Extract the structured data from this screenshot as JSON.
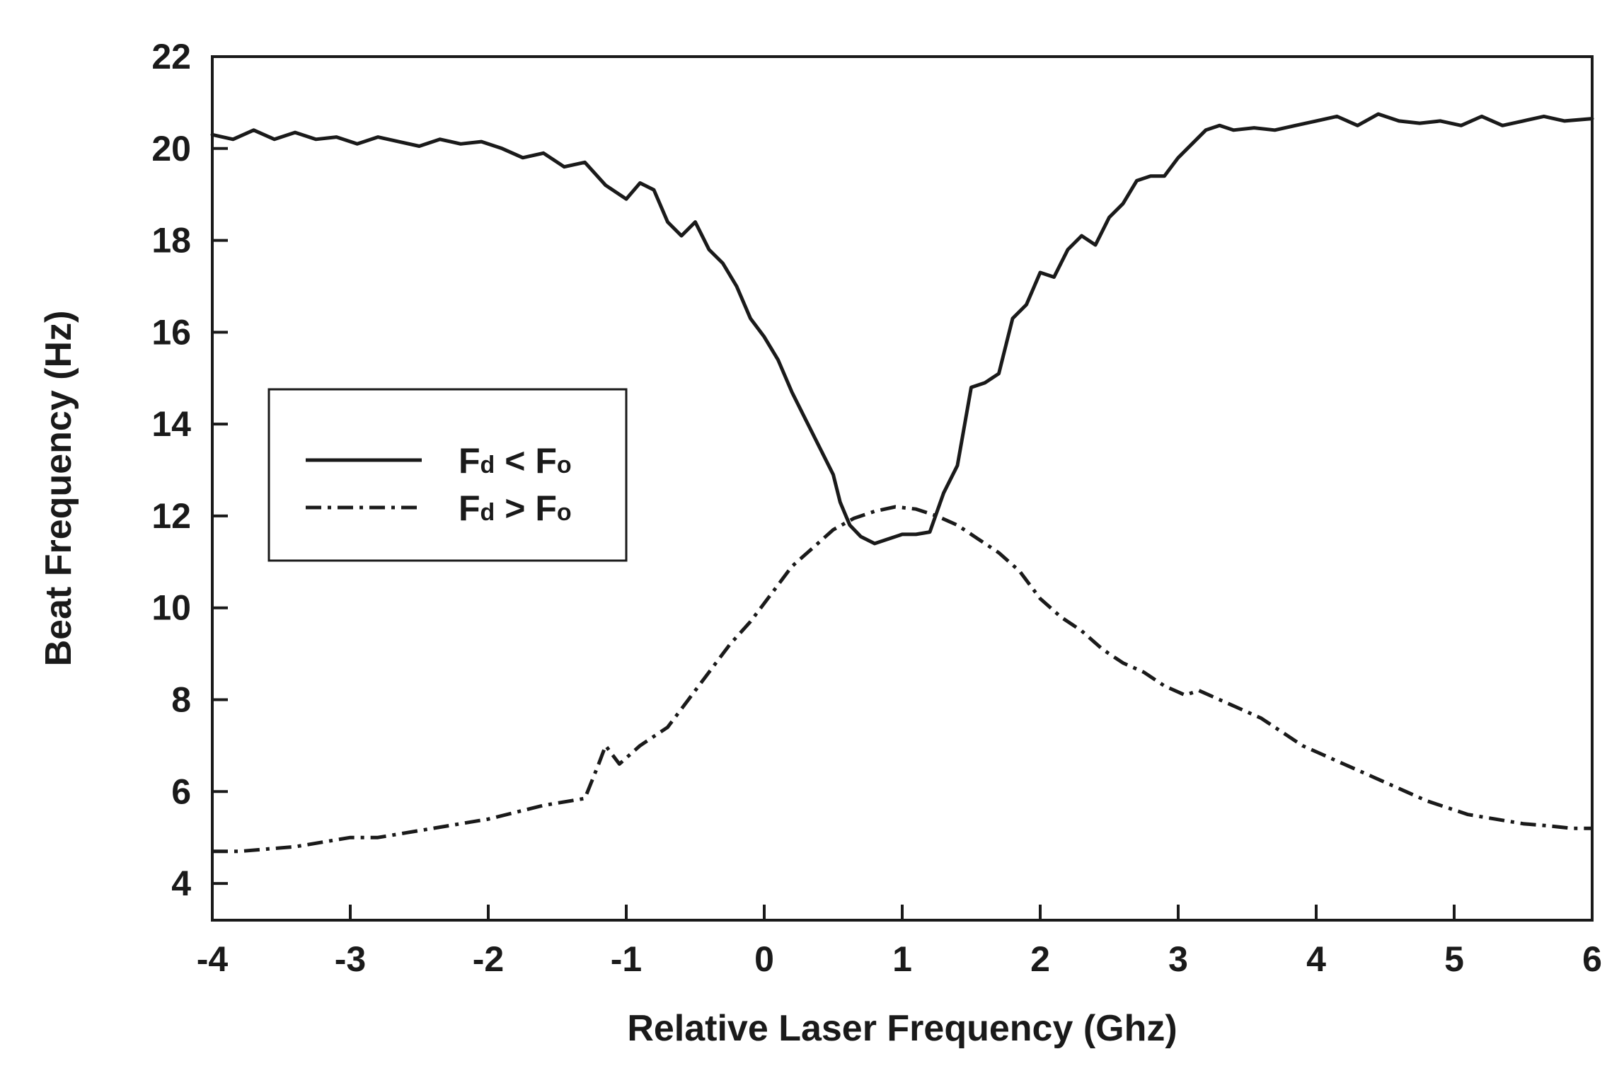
{
  "chart_data": {
    "type": "line",
    "xlabel": "Relative Laser Frequency (Ghz)",
    "ylabel": "Beat Frequency (Hz)",
    "xlim": [
      -4,
      6
    ],
    "ylim": [
      3.2,
      22
    ],
    "x_ticks": [
      -4,
      -3,
      -2,
      -1,
      0,
      1,
      2,
      3,
      4,
      5,
      6
    ],
    "y_ticks": [
      4,
      6,
      8,
      10,
      12,
      14,
      16,
      18,
      20,
      22
    ],
    "grid": false,
    "legend_position": "left-middle",
    "series": [
      {
        "name": "Fd < Fo",
        "style": "solid",
        "points": [
          [
            -4.0,
            20.3
          ],
          [
            -3.85,
            20.2
          ],
          [
            -3.7,
            20.4
          ],
          [
            -3.55,
            20.2
          ],
          [
            -3.4,
            20.35
          ],
          [
            -3.25,
            20.2
          ],
          [
            -3.1,
            20.25
          ],
          [
            -2.95,
            20.1
          ],
          [
            -2.8,
            20.25
          ],
          [
            -2.65,
            20.15
          ],
          [
            -2.5,
            20.05
          ],
          [
            -2.35,
            20.2
          ],
          [
            -2.2,
            20.1
          ],
          [
            -2.05,
            20.15
          ],
          [
            -1.9,
            20.0
          ],
          [
            -1.75,
            19.8
          ],
          [
            -1.6,
            19.9
          ],
          [
            -1.45,
            19.6
          ],
          [
            -1.3,
            19.7
          ],
          [
            -1.15,
            19.2
          ],
          [
            -1.0,
            18.9
          ],
          [
            -0.9,
            19.25
          ],
          [
            -0.8,
            19.1
          ],
          [
            -0.7,
            18.4
          ],
          [
            -0.6,
            18.1
          ],
          [
            -0.5,
            18.4
          ],
          [
            -0.4,
            17.8
          ],
          [
            -0.3,
            17.5
          ],
          [
            -0.2,
            17.0
          ],
          [
            -0.1,
            16.3
          ],
          [
            0.0,
            15.9
          ],
          [
            0.1,
            15.4
          ],
          [
            0.2,
            14.7
          ],
          [
            0.3,
            14.1
          ],
          [
            0.4,
            13.5
          ],
          [
            0.5,
            12.9
          ],
          [
            0.55,
            12.3
          ],
          [
            0.62,
            11.8
          ],
          [
            0.7,
            11.55
          ],
          [
            0.8,
            11.4
          ],
          [
            0.9,
            11.5
          ],
          [
            1.0,
            11.6
          ],
          [
            1.1,
            11.6
          ],
          [
            1.2,
            11.65
          ],
          [
            1.3,
            12.5
          ],
          [
            1.4,
            13.1
          ],
          [
            1.5,
            14.8
          ],
          [
            1.6,
            14.9
          ],
          [
            1.7,
            15.1
          ],
          [
            1.8,
            16.3
          ],
          [
            1.9,
            16.6
          ],
          [
            2.0,
            17.3
          ],
          [
            2.1,
            17.2
          ],
          [
            2.2,
            17.8
          ],
          [
            2.3,
            18.1
          ],
          [
            2.4,
            17.9
          ],
          [
            2.5,
            18.5
          ],
          [
            2.6,
            18.8
          ],
          [
            2.7,
            19.3
          ],
          [
            2.8,
            19.4
          ],
          [
            2.9,
            19.4
          ],
          [
            3.0,
            19.8
          ],
          [
            3.1,
            20.1
          ],
          [
            3.2,
            20.4
          ],
          [
            3.3,
            20.5
          ],
          [
            3.4,
            20.4
          ],
          [
            3.55,
            20.45
          ],
          [
            3.7,
            20.4
          ],
          [
            3.85,
            20.5
          ],
          [
            4.0,
            20.6
          ],
          [
            4.15,
            20.7
          ],
          [
            4.3,
            20.5
          ],
          [
            4.45,
            20.75
          ],
          [
            4.6,
            20.6
          ],
          [
            4.75,
            20.55
          ],
          [
            4.9,
            20.6
          ],
          [
            5.05,
            20.5
          ],
          [
            5.2,
            20.7
          ],
          [
            5.35,
            20.5
          ],
          [
            5.5,
            20.6
          ],
          [
            5.65,
            20.7
          ],
          [
            5.8,
            20.6
          ],
          [
            6.0,
            20.65
          ]
        ]
      },
      {
        "name": "Fd > Fo",
        "style": "dash-dot",
        "points": [
          [
            -4.0,
            4.7
          ],
          [
            -3.8,
            4.7
          ],
          [
            -3.6,
            4.75
          ],
          [
            -3.4,
            4.8
          ],
          [
            -3.2,
            4.9
          ],
          [
            -3.0,
            5.0
          ],
          [
            -2.8,
            5.0
          ],
          [
            -2.6,
            5.1
          ],
          [
            -2.4,
            5.2
          ],
          [
            -2.2,
            5.3
          ],
          [
            -2.0,
            5.4
          ],
          [
            -1.8,
            5.55
          ],
          [
            -1.6,
            5.7
          ],
          [
            -1.4,
            5.8
          ],
          [
            -1.3,
            5.85
          ],
          [
            -1.2,
            6.6
          ],
          [
            -1.15,
            7.0
          ],
          [
            -1.05,
            6.6
          ],
          [
            -0.9,
            7.0
          ],
          [
            -0.7,
            7.4
          ],
          [
            -0.55,
            8.0
          ],
          [
            -0.4,
            8.6
          ],
          [
            -0.25,
            9.2
          ],
          [
            -0.1,
            9.7
          ],
          [
            0.05,
            10.3
          ],
          [
            0.2,
            10.9
          ],
          [
            0.35,
            11.3
          ],
          [
            0.5,
            11.7
          ],
          [
            0.65,
            11.95
          ],
          [
            0.8,
            12.1
          ],
          [
            0.95,
            12.2
          ],
          [
            1.1,
            12.15
          ],
          [
            1.25,
            12.0
          ],
          [
            1.4,
            11.8
          ],
          [
            1.55,
            11.5
          ],
          [
            1.7,
            11.2
          ],
          [
            1.85,
            10.8
          ],
          [
            2.0,
            10.2
          ],
          [
            2.15,
            9.8
          ],
          [
            2.3,
            9.5
          ],
          [
            2.45,
            9.1
          ],
          [
            2.6,
            8.8
          ],
          [
            2.75,
            8.6
          ],
          [
            2.9,
            8.3
          ],
          [
            3.05,
            8.1
          ],
          [
            3.15,
            8.2
          ],
          [
            3.3,
            8.0
          ],
          [
            3.45,
            7.8
          ],
          [
            3.6,
            7.6
          ],
          [
            3.75,
            7.3
          ],
          [
            3.9,
            7.0
          ],
          [
            4.05,
            6.8
          ],
          [
            4.2,
            6.6
          ],
          [
            4.35,
            6.4
          ],
          [
            4.5,
            6.2
          ],
          [
            4.65,
            6.0
          ],
          [
            4.8,
            5.8
          ],
          [
            4.95,
            5.65
          ],
          [
            5.1,
            5.5
          ],
          [
            5.3,
            5.4
          ],
          [
            5.5,
            5.3
          ],
          [
            5.7,
            5.25
          ],
          [
            5.85,
            5.2
          ],
          [
            6.0,
            5.2
          ]
        ]
      }
    ]
  },
  "legend": [
    {
      "main": "F",
      "sub1": "d",
      "op": " < ",
      "main2": "F",
      "sub2": "o"
    },
    {
      "main": "F",
      "sub1": "d",
      "op": " > ",
      "main2": "F",
      "sub2": "o"
    }
  ]
}
